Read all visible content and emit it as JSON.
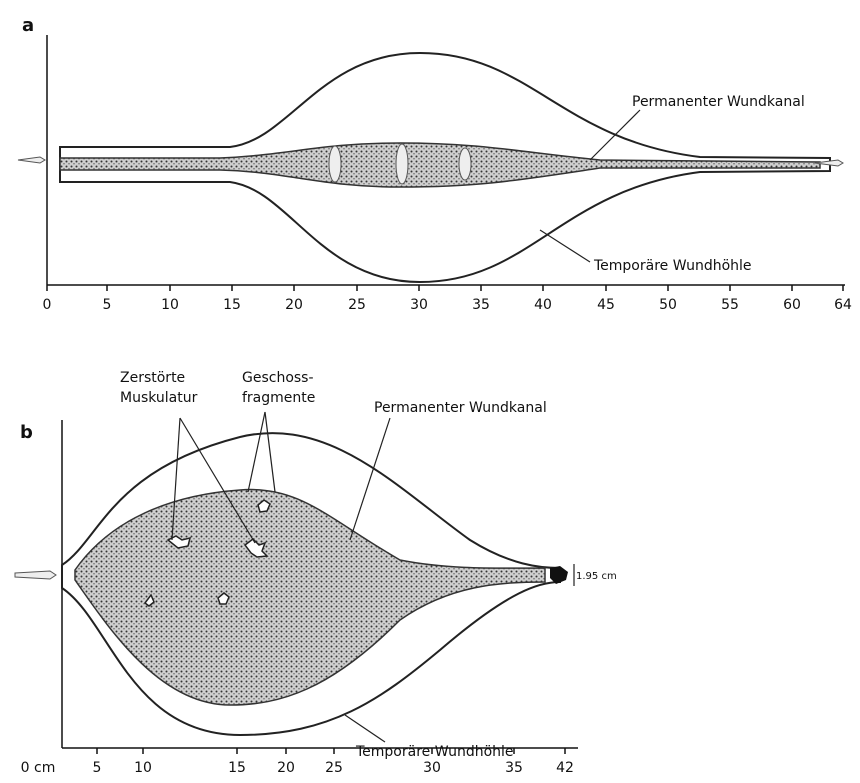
{
  "panels": [
    {
      "label": "a",
      "axis_ticks": [
        "0",
        "5",
        "10",
        "15",
        "20",
        "25",
        "30",
        "35",
        "40",
        "45",
        "50",
        "55",
        "60",
        "64"
      ],
      "annotations": [
        {
          "lines": [
            "Permanenter Wundkanal"
          ]
        },
        {
          "lines": [
            "Temporäre Wundhöhle"
          ]
        }
      ]
    },
    {
      "label": "b",
      "axis_ticks": [
        "0 cm",
        "5",
        "10",
        "15",
        "20",
        "25",
        "30",
        "35",
        "42"
      ],
      "annotations": [
        {
          "lines": [
            "Zerstörte",
            "Muskulatur"
          ]
        },
        {
          "lines": [
            "Geschoss-",
            "fragmente"
          ]
        },
        {
          "lines": [
            "Permanenter Wundkanal"
          ]
        },
        {
          "lines": [
            "Temporäre Wundhöhle"
          ]
        }
      ],
      "scale_label": "1.95 cm"
    }
  ]
}
